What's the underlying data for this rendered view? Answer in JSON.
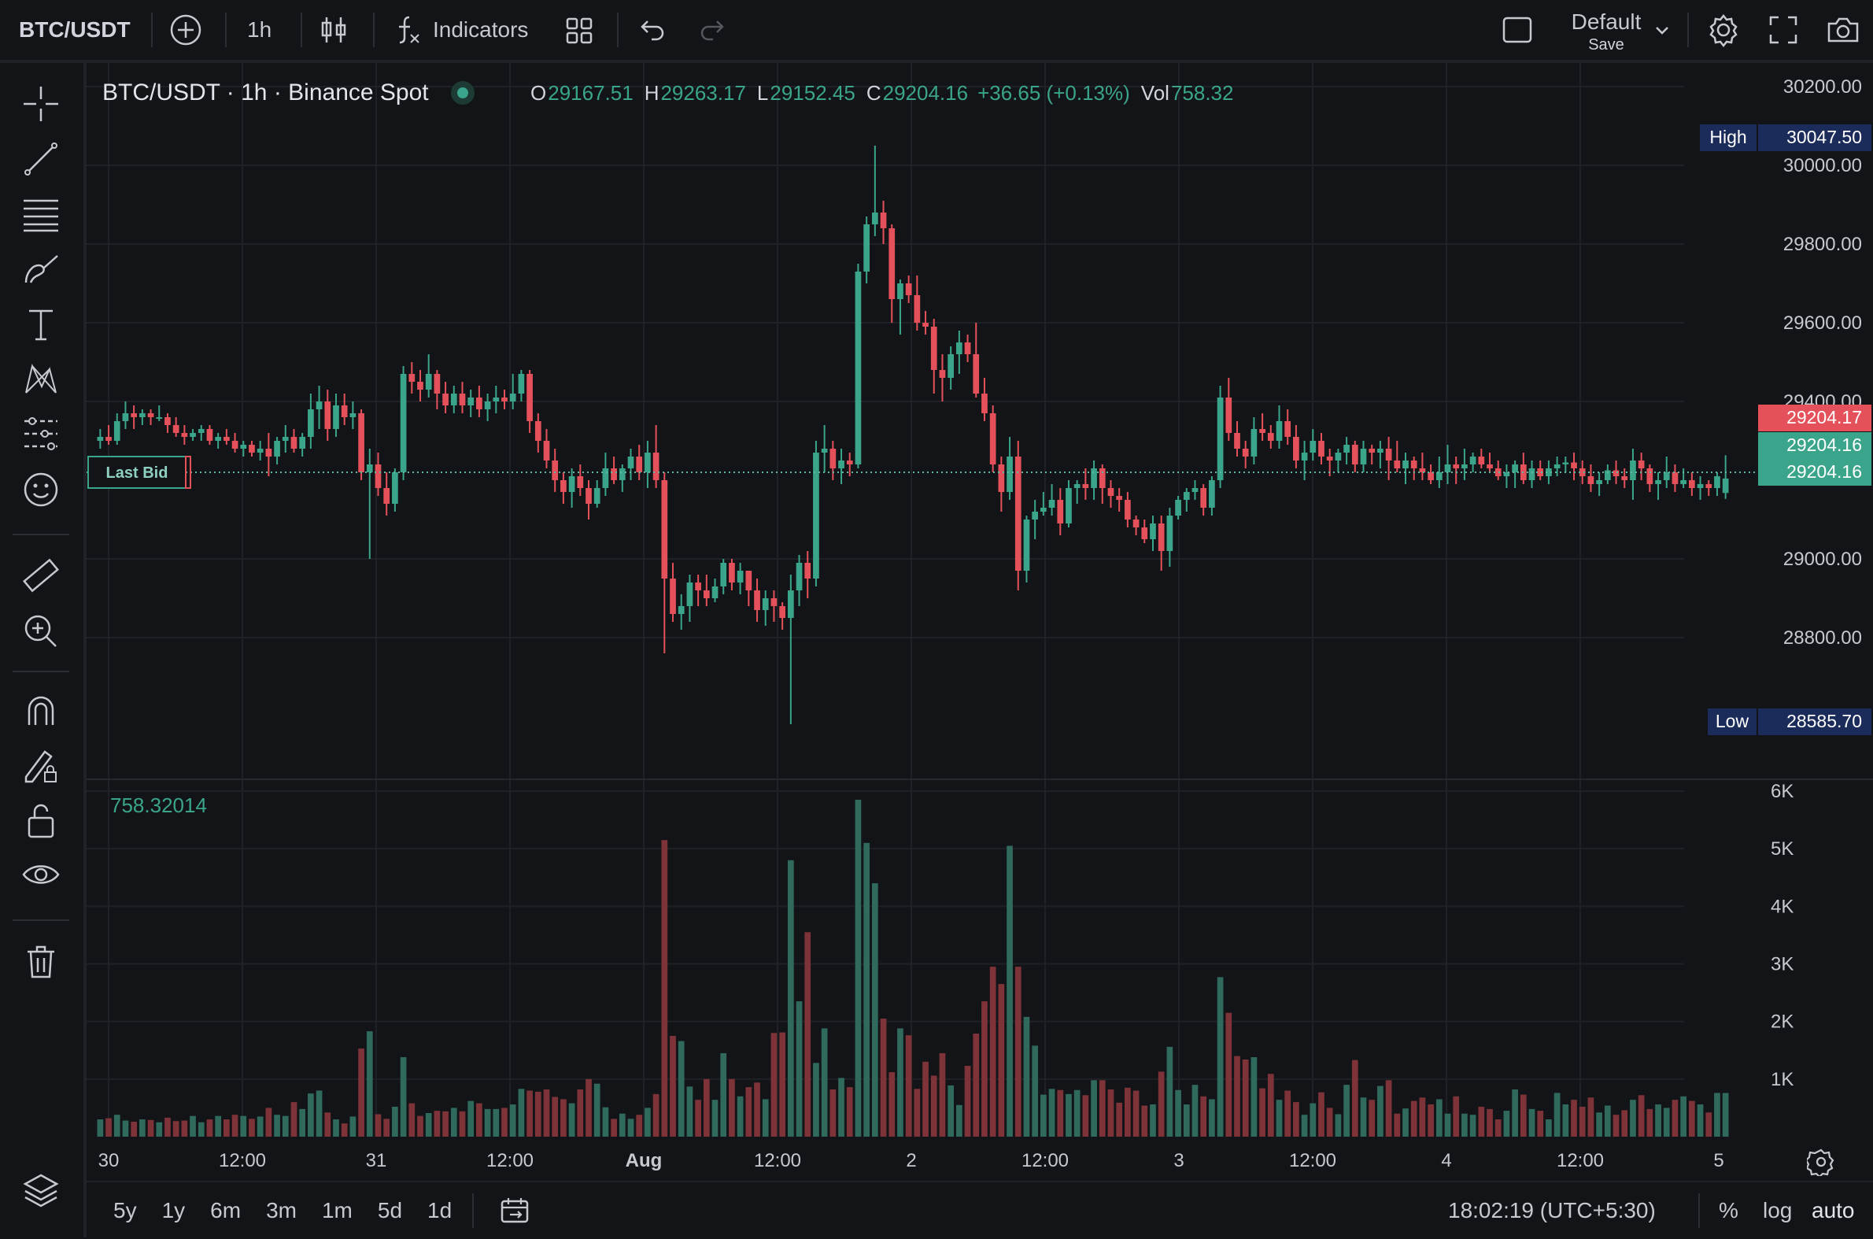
{
  "toolbar": {
    "symbol": "BTC/USDT",
    "interval": "1h",
    "indicators_label": "Indicators",
    "layout_name": "Default",
    "layout_save": "Save"
  },
  "legend": {
    "title": "BTC/USDT · 1h · Binance Spot",
    "o_label": "O",
    "o_value": "29167.51",
    "h_label": "H",
    "h_value": "29263.17",
    "l_label": "L",
    "l_value": "29152.45",
    "c_label": "C",
    "c_value": "29204.16",
    "change": "+36.65 (+0.13%)",
    "vol_label": "Vol",
    "vol_value": "758.32"
  },
  "volume_value": "758.32014",
  "last_bid_label": "Last Bid",
  "price_axis": {
    "ticks": [
      "30200.00",
      "30000.00",
      "29800.00",
      "29600.00",
      "29400.00",
      "29000.00",
      "28800.00"
    ],
    "high_label": "High",
    "high_value": "30047.50",
    "low_label": "Low",
    "low_value": "28585.70",
    "tag_red": "29204.17",
    "tag_green_1": "29204.16",
    "tag_green_2": "29204.16"
  },
  "volume_axis": {
    "ticks": [
      "6K",
      "5K",
      "4K",
      "3K",
      "2K",
      "1K"
    ]
  },
  "time_axis": {
    "ticks": [
      "30",
      "12:00",
      "31",
      "12:00",
      "Aug",
      "12:00",
      "2",
      "12:00",
      "3",
      "12:00",
      "4",
      "12:00",
      "5"
    ]
  },
  "bottom": {
    "ranges": [
      "5y",
      "1y",
      "6m",
      "3m",
      "1m",
      "5d",
      "1d"
    ],
    "clock": "18:02:19 (UTC+5:30)",
    "percent": "%",
    "log": "log",
    "auto": "auto"
  },
  "colors": {
    "up": "#3aa58a",
    "down": "#e5515a",
    "vol_up": "#2f6a5c",
    "vol_down": "#7d3338",
    "label_navy": "#1b2c5a",
    "background": "#131418",
    "grid": "#1f2126"
  },
  "icons": {
    "toolbar": [
      "add-symbol-icon",
      "candles-icon",
      "function-icon",
      "layouts-icon",
      "undo-icon",
      "redo-icon",
      "layout-box-icon",
      "chevron-down-icon",
      "settings-icon",
      "fullscreen-icon",
      "camera-icon",
      "goto-date-icon"
    ],
    "drawing": [
      "crosshair-icon",
      "trend-line-icon",
      "fib-icon",
      "brush-icon",
      "text-icon",
      "pattern-icon",
      "forecast-icon",
      "emoji-icon",
      "ruler-icon",
      "zoom-icon",
      "magnet-icon",
      "lock-drawing-icon",
      "unlock-icon",
      "eye-icon",
      "trash-icon",
      "layers-icon"
    ]
  },
  "chart_data": {
    "type": "candlestick",
    "symbol": "BTC/USDT",
    "interval": "1h",
    "price_range": [
      28440,
      30260
    ],
    "volume_range": [
      0,
      6000
    ],
    "candles": [
      [
        29300,
        29330,
        29280,
        29310,
        300
      ],
      [
        29310,
        29340,
        29290,
        29300,
        320
      ],
      [
        29300,
        29370,
        29290,
        29350,
        380
      ],
      [
        29350,
        29400,
        29330,
        29370,
        280
      ],
      [
        29370,
        29390,
        29330,
        29360,
        260
      ],
      [
        29360,
        29380,
        29340,
        29370,
        300
      ],
      [
        29370,
        29380,
        29340,
        29360,
        290
      ],
      [
        29360,
        29390,
        29350,
        29360,
        250
      ],
      [
        29360,
        29370,
        29320,
        29340,
        330
      ],
      [
        29340,
        29360,
        29310,
        29320,
        270
      ],
      [
        29320,
        29340,
        29290,
        29310,
        280
      ],
      [
        29310,
        29330,
        29300,
        29320,
        360
      ],
      [
        29320,
        29340,
        29300,
        29330,
        250
      ],
      [
        29330,
        29340,
        29290,
        29300,
        300
      ],
      [
        29300,
        29320,
        29280,
        29310,
        360
      ],
      [
        29310,
        29330,
        29290,
        29300,
        300
      ],
      [
        29300,
        29320,
        29270,
        29280,
        380
      ],
      [
        29280,
        29300,
        29260,
        29290,
        360
      ],
      [
        29290,
        29300,
        29260,
        29270,
        310
      ],
      [
        29270,
        29300,
        29250,
        29280,
        350
      ],
      [
        29280,
        29320,
        29210,
        29260,
        500
      ],
      [
        29260,
        29310,
        29240,
        29300,
        380
      ],
      [
        29300,
        29340,
        29270,
        29310,
        360
      ],
      [
        29310,
        29330,
        29270,
        29280,
        600
      ],
      [
        29280,
        29320,
        29260,
        29310,
        480
      ],
      [
        29310,
        29420,
        29280,
        29380,
        750
      ],
      [
        29380,
        29440,
        29330,
        29400,
        800
      ],
      [
        29400,
        29430,
        29300,
        29330,
        420
      ],
      [
        29330,
        29420,
        29310,
        29390,
        300
      ],
      [
        29390,
        29420,
        29340,
        29360,
        230
      ],
      [
        29360,
        29400,
        29330,
        29370,
        350
      ],
      [
        29370,
        29380,
        29200,
        29220,
        1530
      ],
      [
        29220,
        29280,
        29000,
        29240,
        1830
      ],
      [
        29240,
        29270,
        29160,
        29180,
        390
      ],
      [
        29180,
        29220,
        29110,
        29140,
        310
      ],
      [
        29140,
        29230,
        29120,
        29220,
        520
      ],
      [
        29220,
        29490,
        29200,
        29470,
        1380
      ],
      [
        29470,
        29500,
        29420,
        29450,
        580
      ],
      [
        29450,
        29480,
        29400,
        29430,
        360
      ],
      [
        29430,
        29520,
        29410,
        29470,
        410
      ],
      [
        29470,
        29480,
        29380,
        29420,
        450
      ],
      [
        29420,
        29450,
        29370,
        29390,
        440
      ],
      [
        29390,
        29440,
        29370,
        29420,
        500
      ],
      [
        29420,
        29450,
        29370,
        29390,
        440
      ],
      [
        29390,
        29430,
        29360,
        29410,
        620
      ],
      [
        29410,
        29440,
        29360,
        29380,
        580
      ],
      [
        29380,
        29420,
        29350,
        29400,
        480
      ],
      [
        29400,
        29440,
        29370,
        29410,
        480
      ],
      [
        29410,
        29430,
        29380,
        29400,
        500
      ],
      [
        29400,
        29470,
        29380,
        29420,
        560
      ],
      [
        29420,
        29480,
        29400,
        29470,
        830
      ],
      [
        29470,
        29480,
        29320,
        29350,
        800
      ],
      [
        29350,
        29370,
        29270,
        29300,
        780
      ],
      [
        29300,
        29330,
        29230,
        29250,
        820
      ],
      [
        29250,
        29280,
        29170,
        29200,
        690
      ],
      [
        29200,
        29220,
        29140,
        29170,
        650
      ],
      [
        29170,
        29230,
        29130,
        29210,
        580
      ],
      [
        29210,
        29240,
        29160,
        29180,
        820
      ],
      [
        29180,
        29200,
        29100,
        29140,
        1000
      ],
      [
        29140,
        29200,
        29130,
        29180,
        920
      ],
      [
        29180,
        29270,
        29160,
        29230,
        510
      ],
      [
        29230,
        29260,
        29190,
        29200,
        310
      ],
      [
        29200,
        29240,
        29170,
        29230,
        400
      ],
      [
        29230,
        29280,
        29200,
        29260,
        310
      ],
      [
        29260,
        29290,
        29200,
        29220,
        380
      ],
      [
        29220,
        29300,
        29180,
        29270,
        500
      ],
      [
        29270,
        29340,
        29180,
        29200,
        740
      ],
      [
        29200,
        29220,
        28760,
        28950,
        5150
      ],
      [
        28950,
        28990,
        28840,
        28860,
        1750
      ],
      [
        28860,
        28910,
        28820,
        28880,
        1660
      ],
      [
        28880,
        28960,
        28840,
        28940,
        870
      ],
      [
        28940,
        28960,
        28880,
        28920,
        640
      ],
      [
        28920,
        28960,
        28880,
        28900,
        1000
      ],
      [
        28900,
        28950,
        28890,
        28930,
        640
      ],
      [
        28930,
        29000,
        28910,
        28990,
        1450
      ],
      [
        28990,
        29000,
        28920,
        28940,
        1000
      ],
      [
        28940,
        28990,
        28910,
        28970,
        700
      ],
      [
        28970,
        28970,
        28880,
        28920,
        860
      ],
      [
        28920,
        28950,
        28840,
        28870,
        940
      ],
      [
        28870,
        28920,
        28830,
        28900,
        650
      ],
      [
        28900,
        28920,
        28840,
        28880,
        1800
      ],
      [
        28880,
        28890,
        28820,
        28850,
        1810
      ],
      [
        28850,
        28960,
        28580,
        28920,
        4800
      ],
      [
        28920,
        29010,
        28880,
        28990,
        2350
      ],
      [
        28990,
        29020,
        28900,
        28950,
        3550
      ],
      [
        28950,
        29300,
        28930,
        29270,
        1280
      ],
      [
        29270,
        29340,
        29220,
        29280,
        1880
      ],
      [
        29280,
        29300,
        29200,
        29230,
        820
      ],
      [
        29230,
        29280,
        29190,
        29250,
        1020
      ],
      [
        29250,
        29270,
        29210,
        29240,
        860
      ],
      [
        29240,
        29750,
        29230,
        29730,
        5850
      ],
      [
        29730,
        29870,
        29700,
        29850,
        5100
      ],
      [
        29850,
        30050,
        29820,
        29880,
        4400
      ],
      [
        29880,
        29910,
        29800,
        29840,
        2050
      ],
      [
        29840,
        29850,
        29600,
        29660,
        1120
      ],
      [
        29660,
        29710,
        29570,
        29700,
        1880
      ],
      [
        29700,
        29720,
        29650,
        29670,
        1760
      ],
      [
        29670,
        29720,
        29580,
        29600,
        830
      ],
      [
        29600,
        29630,
        29570,
        29590,
        1300
      ],
      [
        29590,
        29610,
        29420,
        29480,
        1060
      ],
      [
        29480,
        29520,
        29400,
        29460,
        1450
      ],
      [
        29460,
        29540,
        29430,
        29520,
        890
      ],
      [
        29520,
        29580,
        29470,
        29550,
        550
      ],
      [
        29550,
        29570,
        29500,
        29520,
        1230
      ],
      [
        29520,
        29600,
        29410,
        29420,
        1790
      ],
      [
        29420,
        29460,
        29350,
        29370,
        2350
      ],
      [
        29370,
        29390,
        29220,
        29240,
        2950
      ],
      [
        29240,
        29260,
        29120,
        29170,
        2650
      ],
      [
        29170,
        29310,
        29150,
        29260,
        5050
      ],
      [
        29260,
        29300,
        28920,
        28970,
        2950
      ],
      [
        28970,
        29110,
        28940,
        29100,
        2080
      ],
      [
        29100,
        29150,
        29050,
        29120,
        1580
      ],
      [
        29120,
        29170,
        29110,
        29130,
        730
      ],
      [
        29130,
        29190,
        29110,
        29150,
        830
      ],
      [
        29150,
        29180,
        29060,
        29090,
        810
      ],
      [
        29090,
        29200,
        29080,
        29180,
        740
      ],
      [
        29180,
        29200,
        29140,
        29190,
        810
      ],
      [
        29190,
        29230,
        29150,
        29180,
        720
      ],
      [
        29180,
        29250,
        29150,
        29230,
        980
      ],
      [
        29230,
        29240,
        29140,
        29180,
        980
      ],
      [
        29180,
        29200,
        29130,
        29160,
        820
      ],
      [
        29160,
        29180,
        29120,
        29150,
        590
      ],
      [
        29150,
        29170,
        29080,
        29100,
        850
      ],
      [
        29100,
        29110,
        29060,
        29080,
        800
      ],
      [
        29080,
        29100,
        29040,
        29050,
        540
      ],
      [
        29050,
        29110,
        29020,
        29090,
        560
      ],
      [
        29090,
        29110,
        28970,
        29020,
        1130
      ],
      [
        29020,
        29130,
        28980,
        29110,
        1560
      ],
      [
        29110,
        29160,
        29100,
        29150,
        810
      ],
      [
        29150,
        29180,
        29120,
        29170,
        560
      ],
      [
        29170,
        29200,
        29150,
        29180,
        900
      ],
      [
        29180,
        29190,
        29110,
        29130,
        700
      ],
      [
        29130,
        29210,
        29110,
        29200,
        650
      ],
      [
        29200,
        29440,
        29180,
        29410,
        2770
      ],
      [
        29410,
        29460,
        29300,
        29320,
        2150
      ],
      [
        29320,
        29350,
        29260,
        29280,
        1400
      ],
      [
        29280,
        29300,
        29230,
        29260,
        1340
      ],
      [
        29260,
        29360,
        29240,
        29330,
        1380
      ],
      [
        29330,
        29370,
        29300,
        29320,
        840
      ],
      [
        29320,
        29340,
        29280,
        29300,
        1090
      ],
      [
        29300,
        29390,
        29280,
        29350,
        640
      ],
      [
        29350,
        29380,
        29290,
        29310,
        800
      ],
      [
        29310,
        29340,
        29230,
        29250,
        600
      ],
      [
        29250,
        29300,
        29200,
        29270,
        380
      ],
      [
        29270,
        29330,
        29250,
        29300,
        580
      ],
      [
        29300,
        29320,
        29240,
        29260,
        770
      ],
      [
        29260,
        29280,
        29210,
        29250,
        500
      ],
      [
        29250,
        29280,
        29220,
        29270,
        390
      ],
      [
        29270,
        29310,
        29240,
        29290,
        900
      ],
      [
        29290,
        29300,
        29220,
        29240,
        1330
      ],
      [
        29240,
        29300,
        29220,
        29280,
        680
      ],
      [
        29280,
        29290,
        29240,
        29270,
        640
      ],
      [
        29270,
        29300,
        29230,
        29280,
        880
      ],
      [
        29280,
        29310,
        29200,
        29250,
        980
      ],
      [
        29250,
        29300,
        29220,
        29230,
        400
      ],
      [
        29230,
        29270,
        29190,
        29250,
        490
      ],
      [
        29250,
        29260,
        29200,
        29230,
        620
      ],
      [
        29230,
        29270,
        29200,
        29220,
        680
      ],
      [
        29220,
        29240,
        29190,
        29200,
        560
      ],
      [
        29200,
        29260,
        29180,
        29220,
        650
      ],
      [
        29220,
        29290,
        29190,
        29240,
        400
      ],
      [
        29240,
        29260,
        29190,
        29230,
        700
      ],
      [
        29230,
        29280,
        29200,
        29240,
        400
      ],
      [
        29240,
        29270,
        29220,
        29260,
        380
      ],
      [
        29260,
        29280,
        29230,
        29240,
        520
      ],
      [
        29240,
        29270,
        29220,
        29230,
        480
      ],
      [
        29230,
        29250,
        29200,
        29210,
        300
      ],
      [
        29210,
        29240,
        29180,
        29220,
        450
      ],
      [
        29220,
        29250,
        29180,
        29240,
        820
      ],
      [
        29240,
        29270,
        29190,
        29200,
        730
      ],
      [
        29200,
        29250,
        29180,
        29230,
        480
      ],
      [
        29230,
        29250,
        29200,
        29210,
        450
      ],
      [
        29210,
        29250,
        29190,
        29230,
        300
      ],
      [
        29230,
        29260,
        29210,
        29240,
        760
      ],
      [
        29240,
        29260,
        29220,
        29245,
        560
      ],
      [
        29245,
        29270,
        29200,
        29230,
        640
      ],
      [
        29230,
        29250,
        29190,
        29210,
        520
      ],
      [
        29210,
        29240,
        29170,
        29190,
        680
      ],
      [
        29190,
        29220,
        29160,
        29200,
        420
      ],
      [
        29200,
        29240,
        29190,
        29225,
        540
      ],
      [
        29225,
        29250,
        29190,
        29210,
        380
      ],
      [
        29210,
        29230,
        29180,
        29200,
        460
      ],
      [
        29200,
        29280,
        29150,
        29250,
        640
      ],
      [
        29250,
        29270,
        29200,
        29230,
        720
      ],
      [
        29230,
        29240,
        29170,
        29190,
        480
      ],
      [
        29190,
        29220,
        29150,
        29200,
        560
      ],
      [
        29200,
        29260,
        29180,
        29220,
        500
      ],
      [
        29220,
        29240,
        29170,
        29190,
        640
      ],
      [
        29190,
        29230,
        29180,
        29200,
        700
      ],
      [
        29200,
        29220,
        29160,
        29180,
        620
      ],
      [
        29180,
        29210,
        29150,
        29190,
        560
      ],
      [
        29190,
        29200,
        29160,
        29180,
        420
      ],
      [
        29180,
        29220,
        29160,
        29210,
        760
      ],
      [
        29167.51,
        29263.17,
        29152.45,
        29204.16,
        758.32
      ]
    ]
  }
}
